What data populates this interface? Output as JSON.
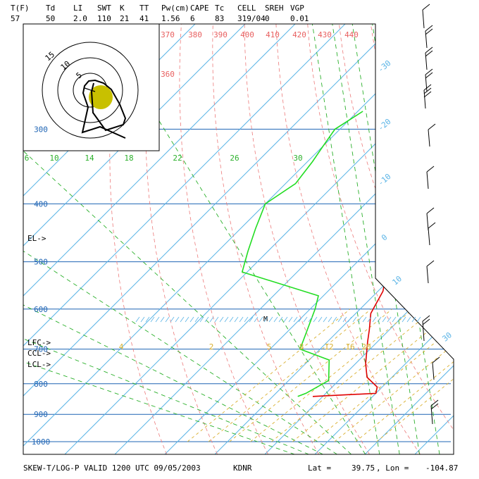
{
  "header": {
    "labels": [
      "T(F)",
      "Td",
      "LI",
      "SWT",
      "K",
      "TT",
      "Pw(cm)",
      "CAPE",
      "Tc",
      "CELL",
      "SREH",
      "VGP"
    ],
    "values": [
      "57",
      "50",
      "2.0",
      "110",
      "21",
      "41",
      "1.56",
      "6",
      "83",
      "319/04",
      "0",
      "0.01"
    ]
  },
  "footer": {
    "title": "SKEW-T/LOG-P VALID 1200 UTC 09/05/2003",
    "station": "KDNR",
    "lat_label": "Lat =",
    "lat": "39.75",
    "lon_label": ", Lon =",
    "lon": "-104.87"
  },
  "level_markers": {
    "el": "EL->",
    "lfc": "LFC->",
    "ccl": "CCL->",
    "lcl": "LCL->",
    "m": "M"
  },
  "chart_data": {
    "type": "line",
    "xlabel": "",
    "ylabel": "",
    "pressure_ticks_mb": [
      300,
      400,
      500,
      600,
      700,
      800,
      900,
      1000
    ],
    "isotherm_labels_c": [
      -30,
      -20,
      -10,
      0,
      10,
      30
    ],
    "theta_e_labels_k": [
      360,
      370,
      380,
      390,
      400,
      410,
      420,
      430,
      440
    ],
    "mixing_ratio_labels_top": [
      6,
      10,
      14,
      18,
      22,
      26,
      30
    ],
    "mixing_ratio_labels_bottom": [
      4,
      2,
      5,
      8,
      12,
      16,
      20
    ],
    "colors": {
      "temperature": "#e00000",
      "dewpoint": "#22dd22",
      "isobar": "#1e64b4",
      "isotherm": "#5ab4e6",
      "dry_adiabat": "#ec7a7a",
      "moist_adiabat": "#2bb02b",
      "mixing_ratio": "#d9b030",
      "hodograph_cell": "#c8c000"
    },
    "series": [
      {
        "x": [
          -2,
          10,
          9,
          5,
          2,
          -2,
          -4,
          -7,
          -9,
          -13,
          -17,
          -21,
          -25,
          -27,
          -30,
          -33,
          -37,
          -41,
          -42,
          -41,
          -38,
          -32
        ],
        "y": [
          840,
          830,
          810,
          780,
          740,
          680,
          650,
          610,
          560,
          510,
          470,
          420,
          370,
          340,
          300,
          260,
          230,
          190,
          170,
          150,
          135,
          120
        ]
      },
      {
        "x": [
          -5,
          -4,
          -2,
          -6,
          -14,
          -19,
          -21,
          -41,
          -44,
          -47,
          -50,
          -48,
          -49,
          -50,
          -51,
          -49
        ],
        "y": [
          840,
          830,
          790,
          730,
          700,
          600,
          570,
          520,
          480,
          440,
          400,
          370,
          340,
          320,
          300,
          280
        ]
      }
    ]
  }
}
